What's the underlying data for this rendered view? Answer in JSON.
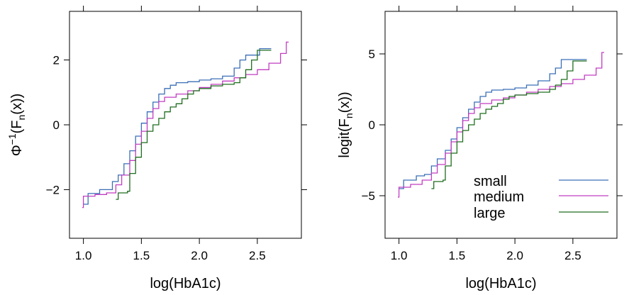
{
  "chart_data": [
    {
      "type": "line",
      "title": "",
      "xlabel": "log(HbA1c)",
      "ylabel": "Φ^{-1}(F_n(x))",
      "ylabel_parts": {
        "base": "Φ",
        "sup": "−1",
        "open": "(F",
        "sub": "n",
        "close": "(x))"
      },
      "xlim": [
        0.88,
        2.88
      ],
      "ylim": [
        -3.5,
        3.5
      ],
      "x_ticks": [
        1.0,
        1.5,
        2.0,
        2.5
      ],
      "x_tick_labels": [
        "1.0",
        "1.5",
        "2.0",
        "2.5"
      ],
      "y_ticks": [
        -2,
        0,
        2
      ],
      "y_tick_labels": [
        "−2",
        "0",
        "2"
      ],
      "legend": null,
      "series": [
        {
          "name": "small",
          "color": "#3b6fb6",
          "points": [
            [
              1.0,
              -2.45
            ],
            [
              1.04,
              -2.12
            ],
            [
              1.12,
              -2.12
            ],
            [
              1.14,
              -2.0
            ],
            [
              1.22,
              -2.0
            ],
            [
              1.25,
              -1.75
            ],
            [
              1.3,
              -1.55
            ],
            [
              1.35,
              -1.2
            ],
            [
              1.4,
              -0.8
            ],
            [
              1.45,
              -0.35
            ],
            [
              1.5,
              0.05
            ],
            [
              1.55,
              0.4
            ],
            [
              1.6,
              0.7
            ],
            [
              1.65,
              0.95
            ],
            [
              1.7,
              1.12
            ],
            [
              1.75,
              1.22
            ],
            [
              1.8,
              1.3
            ],
            [
              1.9,
              1.33
            ],
            [
              2.0,
              1.38
            ],
            [
              2.1,
              1.42
            ],
            [
              2.2,
              1.5
            ],
            [
              2.3,
              1.75
            ],
            [
              2.35,
              2.0
            ],
            [
              2.4,
              2.15
            ],
            [
              2.5,
              2.15
            ],
            [
              2.52,
              2.35
            ],
            [
              2.62,
              2.35
            ]
          ]
        },
        {
          "name": "medium",
          "color": "#c23ec2",
          "points": [
            [
              0.99,
              -2.55
            ],
            [
              1.0,
              -2.2
            ],
            [
              1.1,
              -2.15
            ],
            [
              1.2,
              -2.1
            ],
            [
              1.28,
              -1.85
            ],
            [
              1.33,
              -1.55
            ],
            [
              1.4,
              -1.1
            ],
            [
              1.45,
              -0.6
            ],
            [
              1.5,
              -0.2
            ],
            [
              1.55,
              0.2
            ],
            [
              1.6,
              0.5
            ],
            [
              1.65,
              0.72
            ],
            [
              1.7,
              0.85
            ],
            [
              1.8,
              0.95
            ],
            [
              1.9,
              1.05
            ],
            [
              2.0,
              1.15
            ],
            [
              2.1,
              1.25
            ],
            [
              2.2,
              1.35
            ],
            [
              2.3,
              1.45
            ],
            [
              2.4,
              1.55
            ],
            [
              2.5,
              1.7
            ],
            [
              2.6,
              1.9
            ],
            [
              2.7,
              2.2
            ],
            [
              2.75,
              2.55
            ],
            [
              2.77,
              2.55
            ]
          ]
        },
        {
          "name": "large",
          "color": "#1e6e1e",
          "points": [
            [
              1.28,
              -2.3
            ],
            [
              1.3,
              -2.1
            ],
            [
              1.38,
              -2.05
            ],
            [
              1.4,
              -1.5
            ],
            [
              1.45,
              -1.0
            ],
            [
              1.5,
              -0.55
            ],
            [
              1.55,
              -0.2
            ],
            [
              1.6,
              0.0
            ],
            [
              1.65,
              0.2
            ],
            [
              1.7,
              0.4
            ],
            [
              1.75,
              0.55
            ],
            [
              1.8,
              0.65
            ],
            [
              1.85,
              0.8
            ],
            [
              1.9,
              0.95
            ],
            [
              1.95,
              1.05
            ],
            [
              2.0,
              1.12
            ],
            [
              2.1,
              1.2
            ],
            [
              2.2,
              1.25
            ],
            [
              2.3,
              1.3
            ],
            [
              2.35,
              1.45
            ],
            [
              2.4,
              1.7
            ],
            [
              2.45,
              2.0
            ],
            [
              2.5,
              2.3
            ],
            [
              2.62,
              2.3
            ]
          ]
        }
      ]
    },
    {
      "type": "line",
      "title": "",
      "xlabel": "log(HbA1c)",
      "ylabel": "logit(F_n(x))",
      "ylabel_parts": {
        "open": "logit(F",
        "sub": "n",
        "close": "(x))"
      },
      "xlim": [
        0.88,
        2.88
      ],
      "ylim": [
        -8.0,
        8.0
      ],
      "x_ticks": [
        1.0,
        1.5,
        2.0,
        2.5
      ],
      "x_tick_labels": [
        "1.0",
        "1.5",
        "2.0",
        "2.5"
      ],
      "y_ticks": [
        -5,
        0,
        5
      ],
      "y_tick_labels": [
        "−5",
        "0",
        "5"
      ],
      "legend": {
        "position": "bottom-right",
        "entries": [
          {
            "label": "small",
            "color": "#3b6fb6"
          },
          {
            "label": "medium",
            "color": "#c23ec2"
          },
          {
            "label": "large",
            "color": "#1e6e1e"
          }
        ]
      },
      "series": [
        {
          "name": "small",
          "color": "#3b6fb6",
          "points": [
            [
              1.0,
              -4.5
            ],
            [
              1.04,
              -3.9
            ],
            [
              1.12,
              -3.9
            ],
            [
              1.15,
              -3.6
            ],
            [
              1.22,
              -3.5
            ],
            [
              1.28,
              -2.9
            ],
            [
              1.33,
              -2.4
            ],
            [
              1.4,
              -1.8
            ],
            [
              1.45,
              -1.0
            ],
            [
              1.5,
              -0.2
            ],
            [
              1.55,
              0.5
            ],
            [
              1.6,
              1.1
            ],
            [
              1.65,
              1.6
            ],
            [
              1.7,
              2.0
            ],
            [
              1.75,
              2.3
            ],
            [
              1.8,
              2.45
            ],
            [
              1.9,
              2.5
            ],
            [
              2.0,
              2.6
            ],
            [
              2.1,
              2.8
            ],
            [
              2.2,
              3.1
            ],
            [
              2.3,
              3.6
            ],
            [
              2.35,
              4.0
            ],
            [
              2.4,
              4.6
            ],
            [
              2.5,
              4.6
            ],
            [
              2.52,
              4.6
            ],
            [
              2.62,
              4.6
            ]
          ]
        },
        {
          "name": "medium",
          "color": "#c23ec2",
          "points": [
            [
              0.99,
              -5.1
            ],
            [
              1.0,
              -4.4
            ],
            [
              1.1,
              -4.2
            ],
            [
              1.2,
              -3.9
            ],
            [
              1.28,
              -3.4
            ],
            [
              1.33,
              -2.8
            ],
            [
              1.4,
              -2.0
            ],
            [
              1.45,
              -1.2
            ],
            [
              1.5,
              -0.5
            ],
            [
              1.55,
              0.3
            ],
            [
              1.6,
              0.8
            ],
            [
              1.65,
              1.2
            ],
            [
              1.7,
              1.5
            ],
            [
              1.8,
              1.75
            ],
            [
              1.9,
              1.9
            ],
            [
              2.0,
              2.1
            ],
            [
              2.1,
              2.3
            ],
            [
              2.2,
              2.5
            ],
            [
              2.3,
              2.7
            ],
            [
              2.4,
              2.9
            ],
            [
              2.5,
              3.2
            ],
            [
              2.6,
              3.5
            ],
            [
              2.7,
              4.0
            ],
            [
              2.75,
              5.1
            ],
            [
              2.77,
              5.1
            ]
          ]
        },
        {
          "name": "large",
          "color": "#1e6e1e",
          "points": [
            [
              1.28,
              -4.5
            ],
            [
              1.3,
              -4.0
            ],
            [
              1.38,
              -3.9
            ],
            [
              1.4,
              -2.9
            ],
            [
              1.45,
              -2.0
            ],
            [
              1.5,
              -1.2
            ],
            [
              1.55,
              -0.4
            ],
            [
              1.6,
              0.0
            ],
            [
              1.65,
              0.4
            ],
            [
              1.7,
              0.8
            ],
            [
              1.75,
              1.1
            ],
            [
              1.8,
              1.3
            ],
            [
              1.85,
              1.5
            ],
            [
              1.9,
              1.8
            ],
            [
              1.95,
              2.0
            ],
            [
              2.0,
              2.1
            ],
            [
              2.1,
              2.2
            ],
            [
              2.2,
              2.3
            ],
            [
              2.3,
              2.5
            ],
            [
              2.35,
              2.8
            ],
            [
              2.4,
              3.2
            ],
            [
              2.45,
              3.8
            ],
            [
              2.5,
              4.5
            ],
            [
              2.62,
              4.5
            ]
          ]
        }
      ]
    }
  ]
}
